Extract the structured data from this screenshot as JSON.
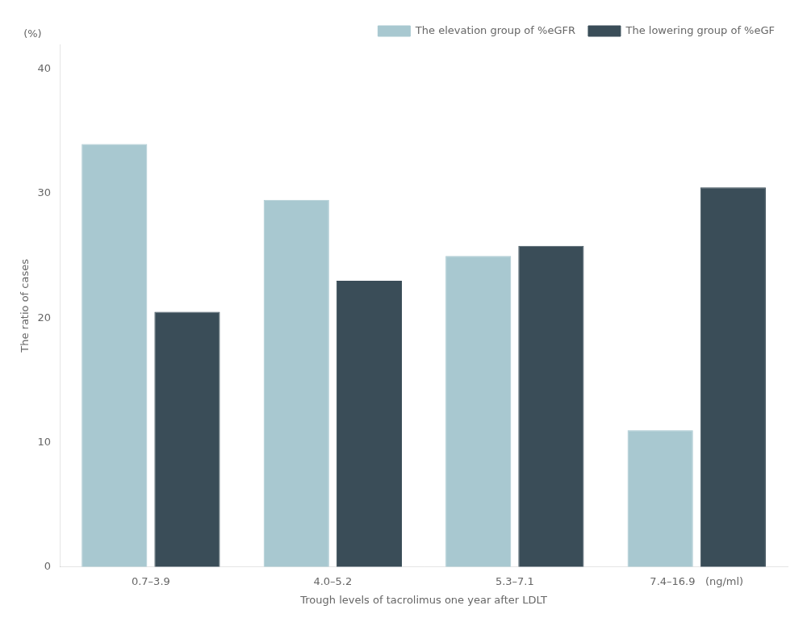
{
  "chart_data": {
    "type": "bar",
    "categories": [
      "0.7–3.9",
      "4.0–5.2",
      "5.3–7.1",
      "7.4–16.9   (ng/ml)"
    ],
    "series": [
      {
        "name": "The elevation group of %eGFR",
        "color": "#a8c8d0",
        "values": [
          34.0,
          29.5,
          25.0,
          11.0
        ]
      },
      {
        "name": "The lowering group of %eGF",
        "color": "#3a4d58",
        "values": [
          20.5,
          23.0,
          25.8,
          30.5
        ]
      }
    ],
    "x_label": "Trough levels of tacrolimus one year after LDLT",
    "y_label": "The ratio of cases",
    "annotations": [
      "(%)"
    ],
    "ylim": [
      0,
      42
    ],
    "yticks": [
      0,
      10,
      20,
      30,
      40
    ],
    "grid": false,
    "legend": "upper right"
  }
}
